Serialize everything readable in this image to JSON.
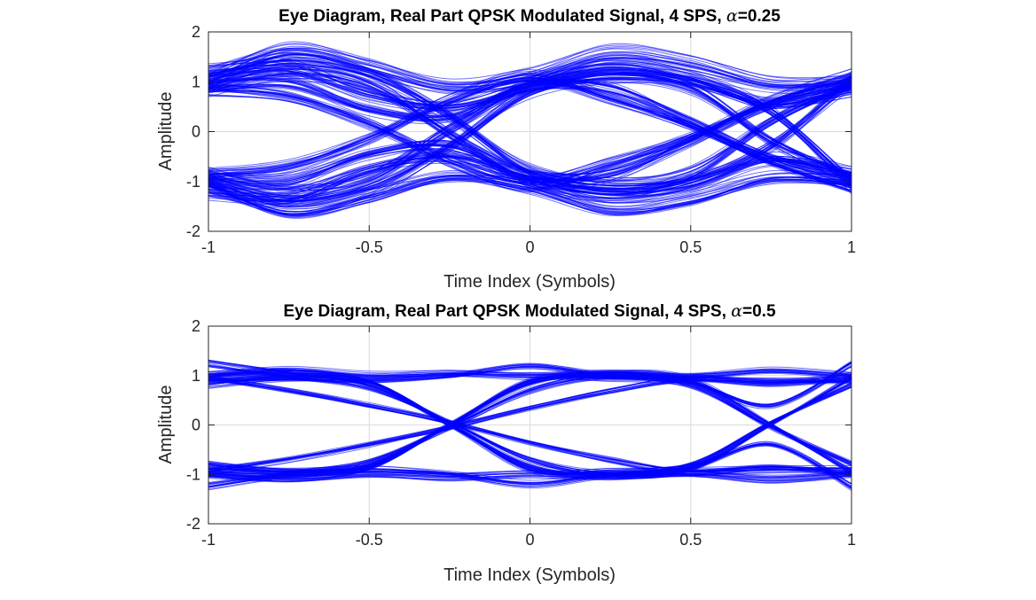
{
  "chart_data": [
    {
      "type": "line",
      "title": {
        "prefix": "Eye Diagram, Real Part QPSK Modulated Signal, 4 SPS, ",
        "symbol": "α",
        "suffix": "=0.25"
      },
      "xlabel": "Time Index (Symbols)",
      "ylabel": "Amplitude",
      "xlim": [
        -1,
        1
      ],
      "ylim": [
        -2,
        2
      ],
      "xticks": [
        -1,
        -0.5,
        0,
        0.5,
        1
      ],
      "xtick_labels": [
        "-1",
        "-0.5",
        "0",
        "0.5",
        "1"
      ],
      "yticks": [
        -2,
        -1,
        0,
        1,
        2
      ],
      "ytick_labels": [
        "-2",
        "-1",
        "0",
        "1",
        "2"
      ],
      "grid": true,
      "rolloff": 0.25,
      "samples_per_symbol": 4,
      "color": "#0000ff",
      "series": [
        {
          "values": [
            0.9,
            1.2,
            0.95,
            -0.05,
            -0.95,
            -1.25,
            -1.0,
            -0.3,
            1.05
          ]
        },
        {
          "values": [
            1.1,
            1.45,
            1.15,
            0.3,
            -0.8,
            -1.1,
            -0.85,
            0.2,
            0.95
          ]
        },
        {
          "values": [
            -0.9,
            -1.25,
            -0.95,
            0.05,
            0.95,
            1.3,
            1.05,
            0.4,
            -1.05
          ]
        },
        {
          "values": [
            -1.1,
            -1.5,
            -1.2,
            -0.3,
            0.8,
            1.15,
            0.9,
            -0.2,
            -0.95
          ]
        },
        {
          "values": [
            1.0,
            1.6,
            1.3,
            0.9,
            1.1,
            1.55,
            1.35,
            0.95,
            1.0
          ]
        },
        {
          "values": [
            -1.0,
            -1.6,
            -1.3,
            -0.9,
            -1.1,
            -1.55,
            -1.35,
            -0.95,
            -1.0
          ]
        },
        {
          "values": [
            0.85,
            0.7,
            0.15,
            -0.6,
            -1.05,
            -0.65,
            -0.1,
            0.6,
            1.1
          ]
        },
        {
          "values": [
            -0.85,
            -0.7,
            -0.15,
            0.6,
            1.05,
            0.65,
            0.1,
            -0.6,
            -1.1
          ]
        },
        {
          "values": [
            1.2,
            1.3,
            0.75,
            0.5,
            0.9,
            1.2,
            1.05,
            0.55,
            0.85
          ]
        },
        {
          "values": [
            -1.2,
            -1.3,
            -0.75,
            -0.5,
            -0.9,
            -1.2,
            -1.05,
            -0.55,
            -0.85
          ]
        },
        {
          "values": [
            0.95,
            1.0,
            0.45,
            0.3,
            0.95,
            0.9,
            0.2,
            -0.55,
            -0.95
          ]
        },
        {
          "values": [
            -0.95,
            -1.0,
            -0.45,
            -0.3,
            -0.95,
            -0.9,
            -0.2,
            0.55,
            0.95
          ]
        }
      ]
    },
    {
      "type": "line",
      "title": {
        "prefix": "Eye Diagram, Real Part QPSK Modulated Signal, 4 SPS, ",
        "symbol": "α",
        "suffix": "=0.5"
      },
      "xlabel": "Time Index (Symbols)",
      "ylabel": "Amplitude",
      "xlim": [
        -1,
        1
      ],
      "ylim": [
        -2,
        2
      ],
      "xticks": [
        -1,
        -0.5,
        0,
        0.5,
        1
      ],
      "xtick_labels": [
        "-1",
        "-0.5",
        "0",
        "0.5",
        "1"
      ],
      "yticks": [
        -2,
        -1,
        0,
        1,
        2
      ],
      "ytick_labels": [
        "-2",
        "-1",
        "0",
        "1",
        "2"
      ],
      "grid": true,
      "rolloff": 0.5,
      "samples_per_symbol": 4,
      "color": "#0000ff",
      "series": [
        {
          "values": [
            1.0,
            1.05,
            0.85,
            0.0,
            -0.85,
            -1.05,
            -0.9,
            0.0,
            0.95
          ]
        },
        {
          "values": [
            -1.0,
            -1.05,
            -0.85,
            0.0,
            0.85,
            1.05,
            0.9,
            0.0,
            -0.95
          ]
        },
        {
          "values": [
            1.0,
            1.1,
            1.0,
            1.05,
            1.0,
            1.05,
            1.0,
            1.1,
            1.0
          ]
        },
        {
          "values": [
            -1.0,
            -1.1,
            -1.0,
            -1.05,
            -1.0,
            -1.05,
            -1.0,
            -1.1,
            -1.0
          ]
        },
        {
          "values": [
            0.9,
            0.95,
            0.9,
            1.0,
            1.2,
            1.0,
            0.95,
            0.9,
            0.9
          ]
        },
        {
          "values": [
            -0.9,
            -0.95,
            -0.9,
            -1.0,
            -1.2,
            -1.0,
            -0.95,
            -0.9,
            -0.9
          ]
        },
        {
          "values": [
            0.95,
            0.7,
            0.4,
            0.05,
            -0.35,
            -0.7,
            -0.95,
            -0.85,
            -1.0
          ]
        },
        {
          "values": [
            -0.95,
            -0.7,
            -0.4,
            -0.05,
            0.35,
            0.7,
            0.95,
            0.85,
            1.0
          ]
        },
        {
          "values": [
            1.25,
            1.0,
            0.75,
            0.05,
            -0.7,
            -1.0,
            -0.8,
            0.05,
            0.8
          ]
        },
        {
          "values": [
            -1.25,
            -1.0,
            -0.75,
            -0.05,
            0.7,
            1.0,
            0.8,
            -0.05,
            -0.8
          ]
        },
        {
          "values": [
            -0.8,
            -0.95,
            -0.85,
            0.0,
            0.9,
            0.95,
            0.85,
            0.4,
            1.25
          ]
        },
        {
          "values": [
            0.8,
            0.95,
            0.85,
            0.0,
            -0.9,
            -0.95,
            -0.85,
            -0.4,
            -1.25
          ]
        }
      ]
    }
  ]
}
